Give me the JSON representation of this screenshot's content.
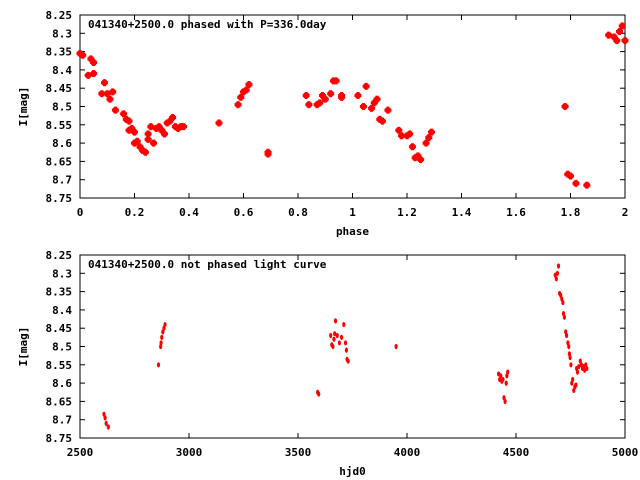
{
  "chart_data": [
    {
      "type": "scatter",
      "title": "041340+2500.0 phased with P=336.0day",
      "xlabel": "phase",
      "ylabel": "I[mag]",
      "xlim": [
        0,
        2
      ],
      "ylim": [
        8.25,
        8.75
      ],
      "y_inverted": true,
      "x_ticks": [
        "0",
        "0.2",
        "0.4",
        "0.6",
        "0.8",
        "1",
        "1.2",
        "1.4",
        "1.6",
        "1.8",
        "2"
      ],
      "y_ticks": [
        "8.25",
        "8.3",
        "8.35",
        "8.4",
        "8.45",
        "8.5",
        "8.55",
        "8.6",
        "8.65",
        "8.7",
        "8.75"
      ],
      "grid": false,
      "marker_color": "#ff0000",
      "points": [
        [
          0.0,
          8.355
        ],
        [
          0.01,
          8.36
        ],
        [
          0.03,
          8.415
        ],
        [
          0.04,
          8.37
        ],
        [
          0.05,
          8.38
        ],
        [
          0.05,
          8.41
        ],
        [
          0.08,
          8.465
        ],
        [
          0.09,
          8.435
        ],
        [
          0.1,
          8.465
        ],
        [
          0.11,
          8.48
        ],
        [
          0.12,
          8.46
        ],
        [
          0.13,
          8.51
        ],
        [
          0.16,
          8.52
        ],
        [
          0.17,
          8.535
        ],
        [
          0.18,
          8.54
        ],
        [
          0.18,
          8.565
        ],
        [
          0.19,
          8.56
        ],
        [
          0.2,
          8.57
        ],
        [
          0.2,
          8.6
        ],
        [
          0.21,
          8.595
        ],
        [
          0.22,
          8.61
        ],
        [
          0.23,
          8.62
        ],
        [
          0.24,
          8.625
        ],
        [
          0.25,
          8.59
        ],
        [
          0.25,
          8.575
        ],
        [
          0.26,
          8.555
        ],
        [
          0.27,
          8.6
        ],
        [
          0.28,
          8.56
        ],
        [
          0.29,
          8.555
        ],
        [
          0.3,
          8.565
        ],
        [
          0.31,
          8.575
        ],
        [
          0.32,
          8.545
        ],
        [
          0.33,
          8.54
        ],
        [
          0.34,
          8.53
        ],
        [
          0.35,
          8.555
        ],
        [
          0.36,
          8.56
        ],
        [
          0.37,
          8.555
        ],
        [
          0.38,
          8.555
        ],
        [
          0.51,
          8.545
        ],
        [
          0.58,
          8.495
        ],
        [
          0.59,
          8.475
        ],
        [
          0.6,
          8.46
        ],
        [
          0.61,
          8.455
        ],
        [
          0.62,
          8.44
        ],
        [
          0.69,
          8.63
        ],
        [
          0.69,
          8.625
        ],
        [
          0.83,
          8.47
        ],
        [
          0.84,
          8.495
        ],
        [
          0.87,
          8.495
        ],
        [
          0.88,
          8.49
        ],
        [
          0.89,
          8.47
        ],
        [
          0.9,
          8.48
        ],
        [
          0.92,
          8.465
        ],
        [
          0.93,
          8.43
        ],
        [
          0.94,
          8.43
        ],
        [
          0.96,
          8.47
        ],
        [
          0.96,
          8.475
        ],
        [
          1.02,
          8.47
        ],
        [
          1.04,
          8.5
        ],
        [
          1.05,
          8.445
        ],
        [
          1.07,
          8.505
        ],
        [
          1.08,
          8.49
        ],
        [
          1.09,
          8.48
        ],
        [
          1.1,
          8.535
        ],
        [
          1.11,
          8.54
        ],
        [
          1.13,
          8.51
        ],
        [
          1.17,
          8.565
        ],
        [
          1.18,
          8.58
        ],
        [
          1.2,
          8.58
        ],
        [
          1.21,
          8.575
        ],
        [
          1.22,
          8.61
        ],
        [
          1.23,
          8.64
        ],
        [
          1.24,
          8.635
        ],
        [
          1.25,
          8.645
        ],
        [
          1.27,
          8.6
        ],
        [
          1.28,
          8.585
        ],
        [
          1.29,
          8.57
        ],
        [
          1.78,
          8.5
        ],
        [
          1.79,
          8.685
        ],
        [
          1.8,
          8.69
        ],
        [
          1.82,
          8.71
        ],
        [
          1.86,
          8.715
        ],
        [
          1.94,
          8.305
        ],
        [
          1.96,
          8.31
        ],
        [
          1.97,
          8.32
        ],
        [
          1.98,
          8.295
        ],
        [
          1.99,
          8.28
        ],
        [
          2.0,
          8.32
        ]
      ]
    },
    {
      "type": "scatter",
      "title": "041340+2500.0 not phased light curve",
      "xlabel": "hjd0",
      "ylabel": "I[mag]",
      "xlim": [
        2500,
        5000
      ],
      "ylim": [
        8.25,
        8.75
      ],
      "y_inverted": true,
      "x_ticks": [
        "2500",
        "3000",
        "3500",
        "4000",
        "4500",
        "5000"
      ],
      "y_ticks": [
        "8.25",
        "8.3",
        "8.35",
        "8.4",
        "8.45",
        "8.5",
        "8.55",
        "8.6",
        "8.65",
        "8.7",
        "8.75"
      ],
      "grid": false,
      "marker_color": "#ff0000",
      "points": [
        [
          2610,
          8.685
        ],
        [
          2615,
          8.695
        ],
        [
          2620,
          8.71
        ],
        [
          2630,
          8.72
        ],
        [
          2860,
          8.55
        ],
        [
          2870,
          8.5
        ],
        [
          2872,
          8.49
        ],
        [
          2875,
          8.475
        ],
        [
          2880,
          8.46
        ],
        [
          2885,
          8.45
        ],
        [
          2890,
          8.44
        ],
        [
          3590,
          8.625
        ],
        [
          3595,
          8.63
        ],
        [
          3650,
          8.47
        ],
        [
          3655,
          8.495
        ],
        [
          3660,
          8.5
        ],
        [
          3665,
          8.48
        ],
        [
          3668,
          8.465
        ],
        [
          3672,
          8.43
        ],
        [
          3680,
          8.47
        ],
        [
          3690,
          8.49
        ],
        [
          3700,
          8.475
        ],
        [
          3710,
          8.44
        ],
        [
          3718,
          8.49
        ],
        [
          3722,
          8.51
        ],
        [
          3725,
          8.535
        ],
        [
          3730,
          8.54
        ],
        [
          3950,
          8.5
        ],
        [
          4420,
          8.575
        ],
        [
          4425,
          8.59
        ],
        [
          4430,
          8.58
        ],
        [
          4435,
          8.595
        ],
        [
          4440,
          8.59
        ],
        [
          4445,
          8.64
        ],
        [
          4450,
          8.65
        ],
        [
          4455,
          8.6
        ],
        [
          4458,
          8.58
        ],
        [
          4462,
          8.57
        ],
        [
          4680,
          8.305
        ],
        [
          4685,
          8.315
        ],
        [
          4690,
          8.3
        ],
        [
          4695,
          8.28
        ],
        [
          4700,
          8.355
        ],
        [
          4705,
          8.36
        ],
        [
          4710,
          8.37
        ],
        [
          4715,
          8.38
        ],
        [
          4718,
          8.41
        ],
        [
          4722,
          8.42
        ],
        [
          4728,
          8.46
        ],
        [
          4732,
          8.47
        ],
        [
          4738,
          8.49
        ],
        [
          4742,
          8.5
        ],
        [
          4745,
          8.52
        ],
        [
          4748,
          8.53
        ],
        [
          4752,
          8.55
        ],
        [
          4756,
          8.6
        ],
        [
          4760,
          8.59
        ],
        [
          4765,
          8.62
        ],
        [
          4770,
          8.61
        ],
        [
          4775,
          8.605
        ],
        [
          4778,
          8.56
        ],
        [
          4782,
          8.57
        ],
        [
          4788,
          8.555
        ],
        [
          4795,
          8.54
        ],
        [
          4800,
          8.55
        ],
        [
          4805,
          8.56
        ],
        [
          4810,
          8.555
        ],
        [
          4815,
          8.565
        ],
        [
          4820,
          8.55
        ],
        [
          4825,
          8.56
        ]
      ]
    }
  ]
}
